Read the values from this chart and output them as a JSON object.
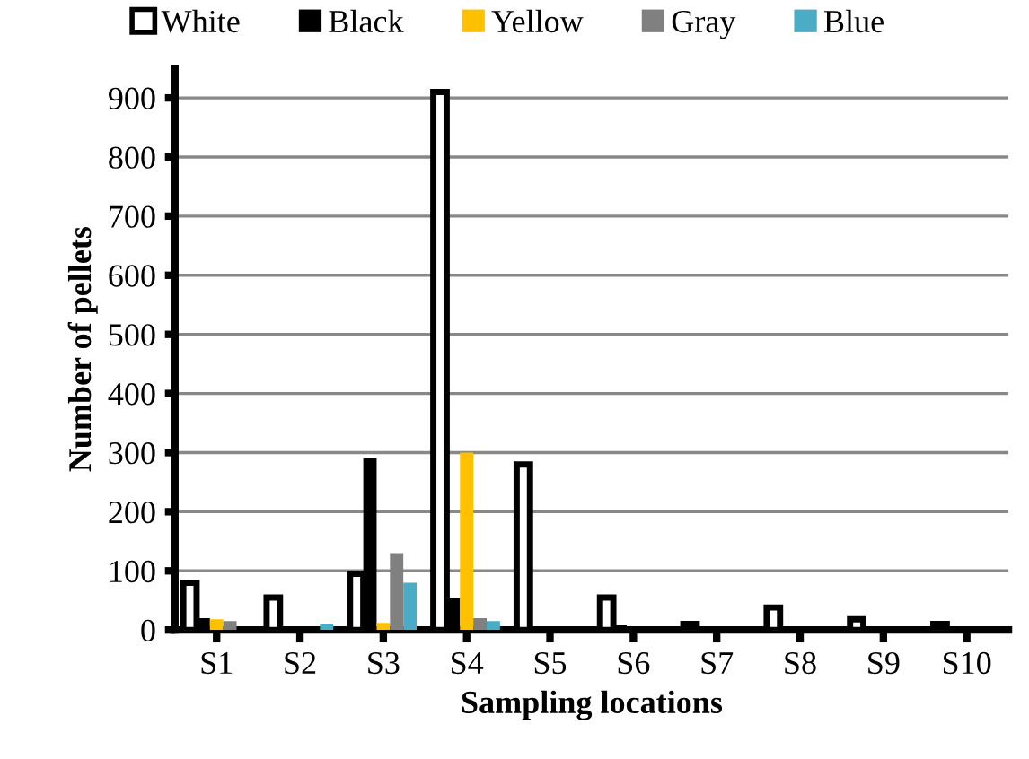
{
  "chart_data": {
    "type": "bar",
    "xlabel": "Sampling locations",
    "ylabel": "Number of pellets",
    "categories": [
      "S1",
      "S2",
      "S3",
      "S4",
      "S5",
      "S6",
      "S7",
      "S8",
      "S9",
      "S10"
    ],
    "series": [
      {
        "name": "White",
        "color": "#ffffff",
        "values": [
          80,
          55,
          95,
          910,
          280,
          55,
          10,
          38,
          18,
          10
        ]
      },
      {
        "name": "Black",
        "color": "#000000",
        "values": [
          20,
          0,
          290,
          55,
          0,
          8,
          0,
          0,
          0,
          0
        ]
      },
      {
        "name": "Yellow",
        "color": "#ffc000",
        "values": [
          18,
          0,
          12,
          300,
          0,
          0,
          0,
          0,
          0,
          0
        ]
      },
      {
        "name": "Gray",
        "color": "#808080",
        "values": [
          15,
          0,
          130,
          20,
          0,
          0,
          0,
          0,
          0,
          0
        ]
      },
      {
        "name": "Blue",
        "color": "#4bacc6",
        "values": [
          0,
          10,
          80,
          15,
          0,
          0,
          0,
          0,
          0,
          0
        ]
      }
    ],
    "ylim": [
      0,
      950
    ],
    "yticks": [
      0,
      100,
      200,
      300,
      400,
      500,
      600,
      700,
      800,
      900
    ],
    "grid": "y",
    "legend": "top"
  }
}
